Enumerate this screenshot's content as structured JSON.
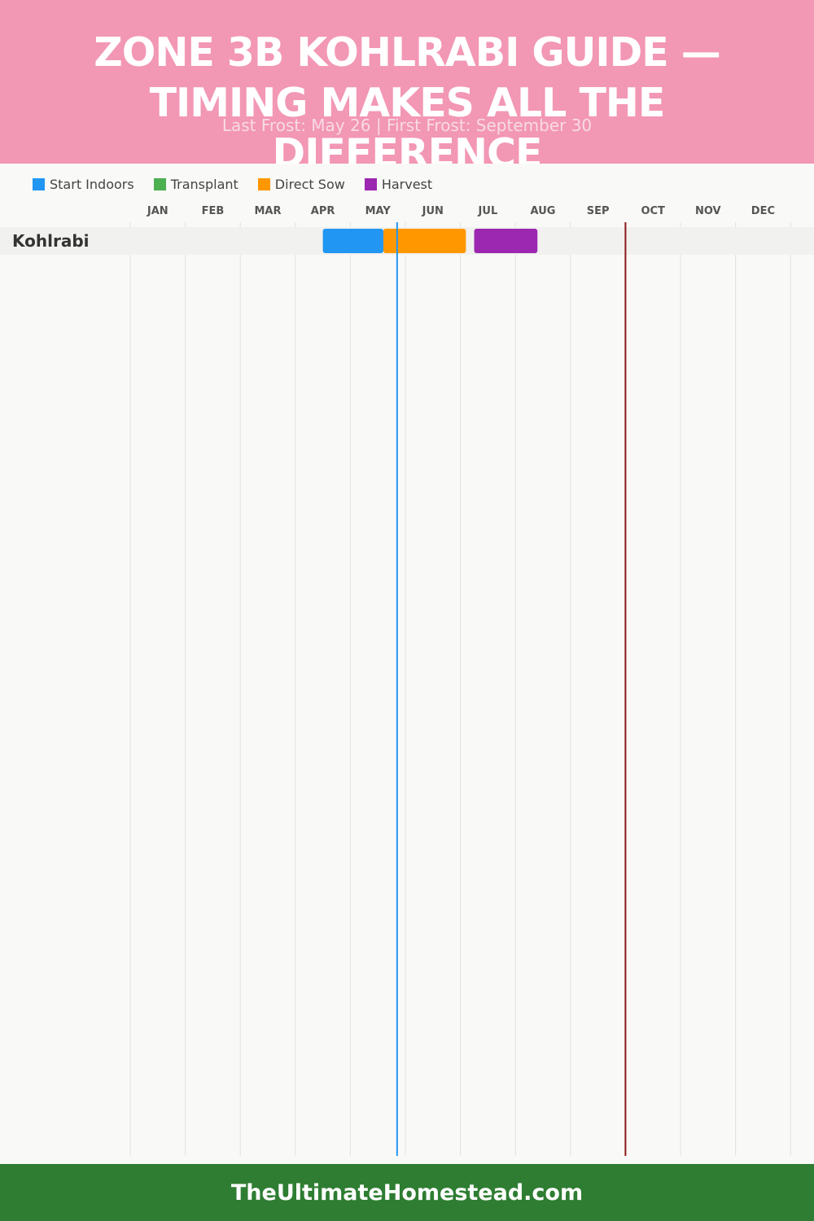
{
  "header": {
    "title": "ZONE 3B KOHLRABI GUIDE — TIMING MAKES ALL THE DIFFERENCE",
    "subtitle": "Last Frost: May 26 | First Frost: September 30"
  },
  "colors": {
    "header_bg": "#f297b4",
    "footer_bg": "#2e7d32",
    "start_indoors": "#2196f3",
    "transplant": "#4caf50",
    "direct_sow": "#ff9800",
    "harvest": "#9c27b0",
    "last_frost_line": "#2196f3",
    "first_frost_line": "#8b1a1a"
  },
  "legend": [
    {
      "label": "Start Indoors",
      "color": "#2196f3"
    },
    {
      "label": "Transplant",
      "color": "#4caf50"
    },
    {
      "label": "Direct Sow",
      "color": "#ff9800"
    },
    {
      "label": "Harvest",
      "color": "#9c27b0"
    }
  ],
  "chart_data": {
    "type": "gantt",
    "months": [
      "JAN",
      "FEB",
      "MAR",
      "APR",
      "MAY",
      "JUN",
      "JUL",
      "AUG",
      "SEP",
      "OCT",
      "NOV",
      "DEC"
    ],
    "rows": [
      {
        "crop": "Kohlrabi",
        "bars": [
          {
            "phase": "Start Indoors",
            "start_month": 4.5,
            "end_month": 5.6
          },
          {
            "phase": "Direct Sow",
            "start_month": 5.6,
            "end_month": 7.1
          },
          {
            "phase": "Harvest",
            "start_month": 7.25,
            "end_month": 8.4
          }
        ]
      }
    ],
    "markers": [
      {
        "name": "Last Frost",
        "date": "May 26",
        "month": 5.85
      },
      {
        "name": "First Frost",
        "date": "September 30",
        "month": 10.0
      }
    ]
  },
  "footer": {
    "text": "TheUltimateHomestead.com"
  }
}
